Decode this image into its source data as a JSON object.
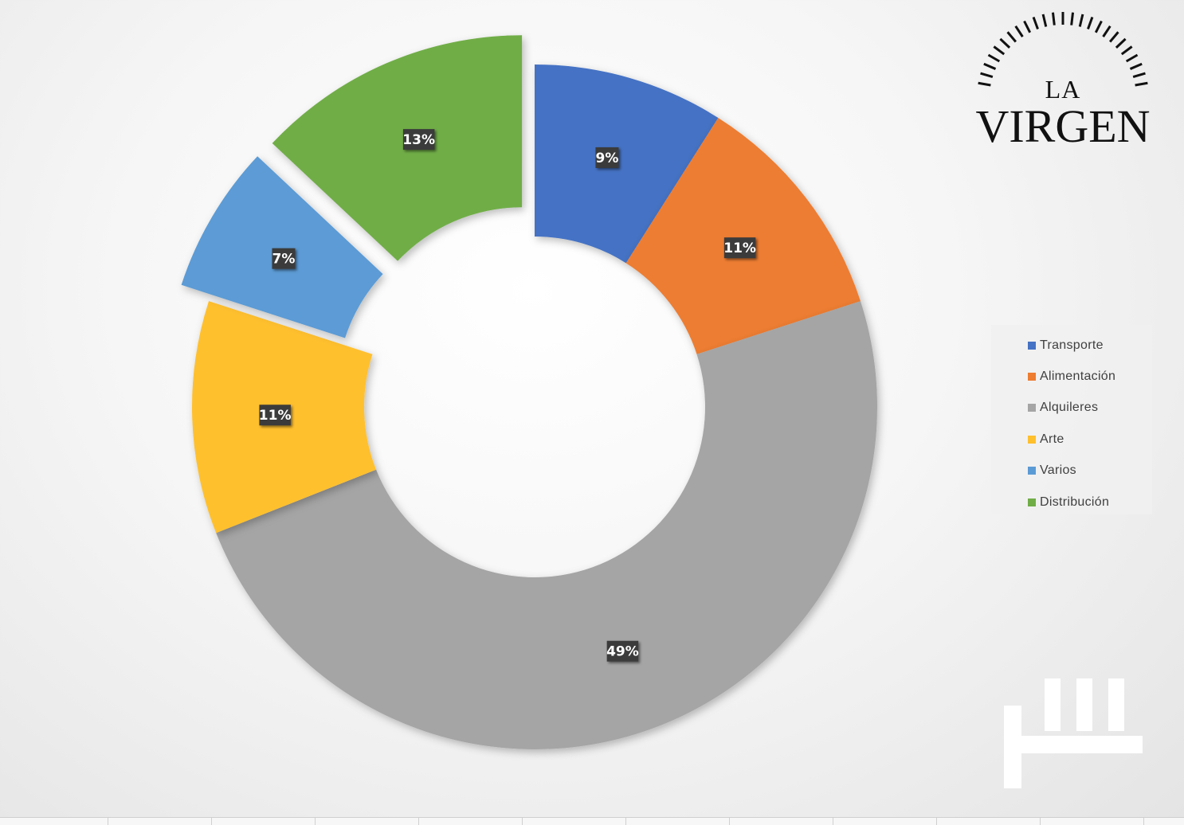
{
  "chart_data": {
    "type": "pie",
    "variant": "doughnut",
    "title": "",
    "categories": [
      "Transporte",
      "Alimentación",
      "Alquileres",
      "Arte",
      "Varios",
      "Distribución"
    ],
    "values": [
      9,
      11,
      49,
      11,
      7,
      13
    ],
    "data_labels": [
      "9%",
      "11%",
      "49%",
      "11%",
      "7%",
      "13%"
    ],
    "exploded": [
      "Transporte",
      "Varios",
      "Distribución"
    ],
    "colors": [
      "#4472C4",
      "#ED7D31",
      "#A5A5A5",
      "#FFC02E",
      "#5B9BD5",
      "#70AD47"
    ],
    "legend": {
      "position": "right",
      "entries": [
        "Transporte",
        "Alimentación",
        "Alquileres",
        "Arte",
        "Varios",
        "Distribución"
      ]
    }
  },
  "logo": {
    "line1": "LA",
    "line2": "VIRGEN"
  }
}
